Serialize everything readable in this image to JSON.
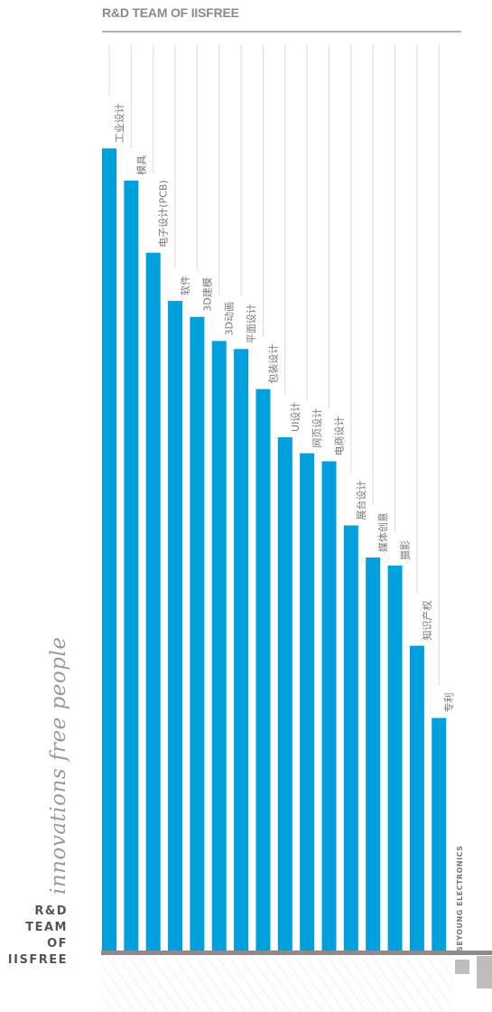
{
  "header": {
    "title": "R&D TEAM OF IISFREE"
  },
  "side": {
    "tagline": "innovations free people",
    "block_lines": [
      "R&D",
      "TEAM",
      "OF IISFREE"
    ]
  },
  "footer": {
    "brand": "SEYOUNG ELECTRONICS"
  },
  "colors": {
    "bar": "#00a0dc",
    "grid": "#d8d8d8",
    "baseline": "#8c8c8c",
    "label": "#777777"
  },
  "chart_data": {
    "type": "bar",
    "orientation": "vertical",
    "categories": [
      "工业设计",
      "模具",
      "电子设计(PCB)",
      "软件",
      "3D建模",
      "3D动画",
      "平面设计",
      "包装设计",
      "UI设计",
      "网页设计",
      "电商设计",
      "展台设计",
      "媒体创意",
      "摄影",
      "知识产权",
      "专利"
    ],
    "values": [
      100,
      96,
      87,
      81,
      79,
      76,
      75,
      70,
      64,
      62,
      61,
      53,
      49,
      48,
      38,
      29
    ],
    "title": "",
    "xlabel": "",
    "ylabel": "",
    "ylim": [
      0,
      114
    ],
    "labels_position": "rotated above bar",
    "grid": true
  }
}
